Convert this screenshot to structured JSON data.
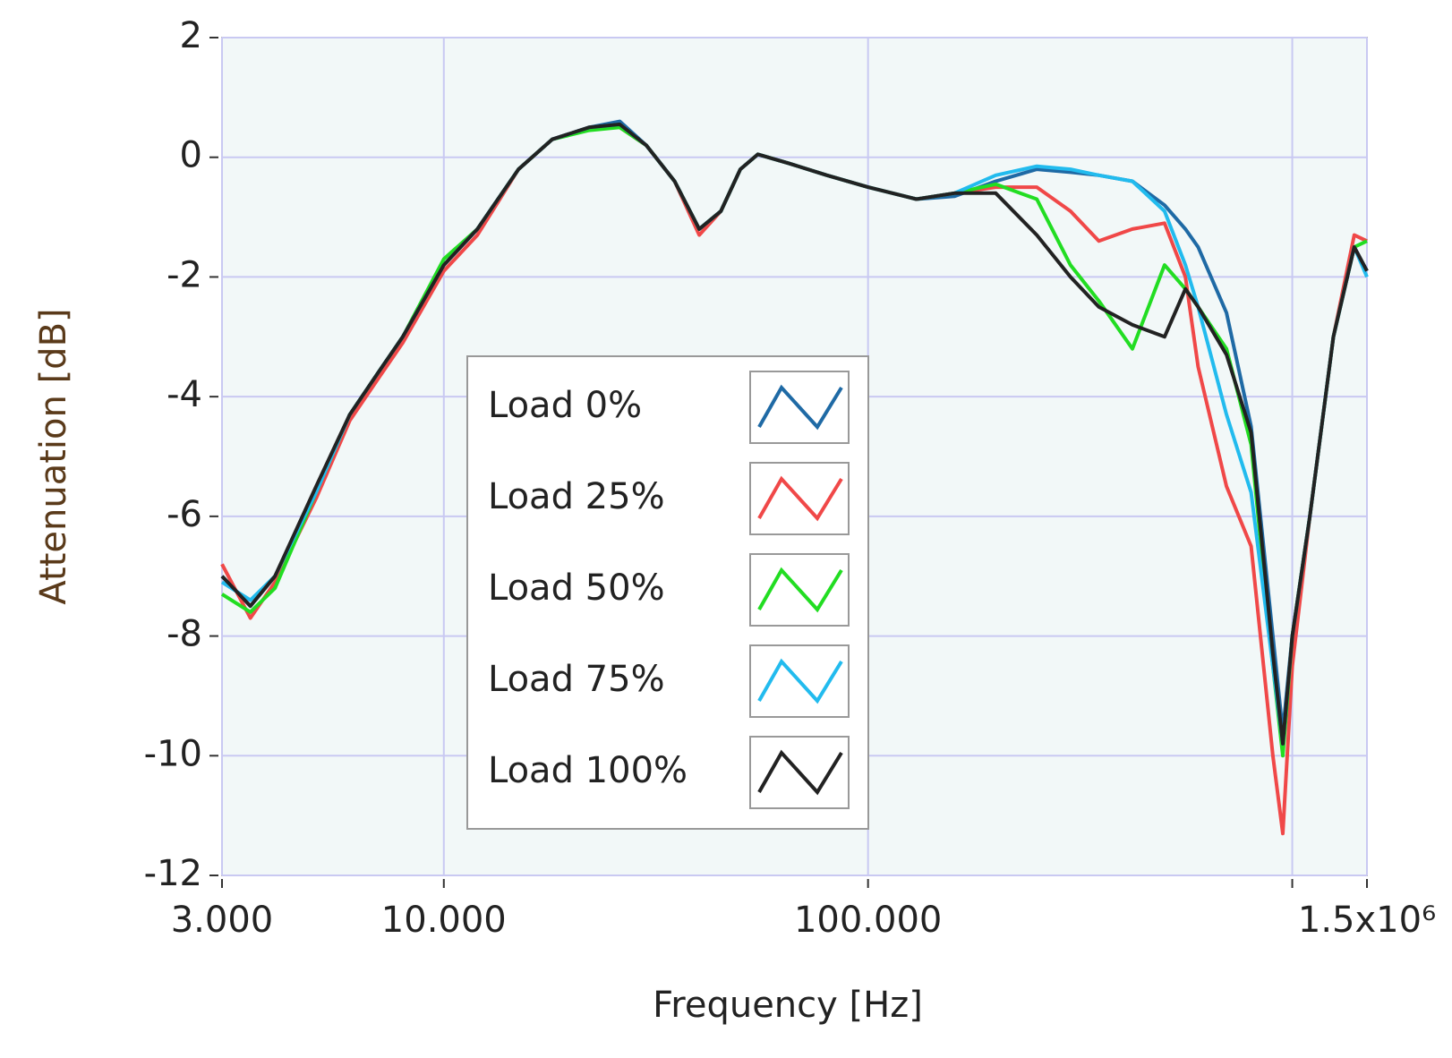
{
  "chart_data": {
    "type": "line",
    "x_label": "Frequency [Hz]",
    "y_label": "Attenuation [dB]",
    "log_x": true,
    "grid": true,
    "xlim": [
      3000,
      1500000
    ],
    "xticks": [
      {
        "value": 3000,
        "label": "3.000"
      },
      {
        "value": 10000,
        "label": "10.000"
      },
      {
        "value": 100000,
        "label": "100.000"
      },
      {
        "value": 1000000,
        "label": null
      },
      {
        "value": 1500000,
        "label": "1.5x10⁶"
      }
    ],
    "ylim": [
      -12,
      2
    ],
    "yticks": [
      -12,
      -10,
      -8,
      -6,
      -4,
      -2,
      0,
      2
    ],
    "x": [
      3000,
      3500,
      4000,
      5000,
      6000,
      7000,
      8000,
      10000,
      12000,
      15000,
      18000,
      22000,
      26000,
      30000,
      35000,
      40000,
      45000,
      50000,
      55000,
      65000,
      80000,
      100000,
      130000,
      160000,
      200000,
      250000,
      300000,
      350000,
      420000,
      500000,
      560000,
      600000,
      700000,
      800000,
      900000,
      950000,
      1000000,
      1100000,
      1250000,
      1400000,
      1500000
    ],
    "series": [
      {
        "name": "Load 0%",
        "color": "#1f6aa5",
        "values": [
          -7.0,
          -7.5,
          -7.0,
          -5.6,
          -4.3,
          -3.6,
          -3.0,
          -1.8,
          -1.2,
          -0.2,
          0.3,
          0.5,
          0.6,
          0.2,
          -0.4,
          -1.2,
          -0.9,
          -0.2,
          0.05,
          -0.1,
          -0.3,
          -0.5,
          -0.7,
          -0.65,
          -0.4,
          -0.2,
          -0.25,
          -0.3,
          -0.4,
          -0.8,
          -1.2,
          -1.5,
          -2.6,
          -4.5,
          -8.0,
          -9.6,
          -8.0,
          -6.0,
          -3.0,
          -1.5,
          -1.9
        ]
      },
      {
        "name": "Load 25%",
        "color": "#f04848",
        "values": [
          -6.8,
          -7.7,
          -7.1,
          -5.7,
          -4.4,
          -3.7,
          -3.1,
          -1.9,
          -1.3,
          -0.2,
          0.3,
          0.5,
          0.5,
          0.2,
          -0.4,
          -1.3,
          -0.9,
          -0.2,
          0.05,
          -0.1,
          -0.3,
          -0.5,
          -0.7,
          -0.6,
          -0.5,
          -0.5,
          -0.9,
          -1.4,
          -1.2,
          -1.1,
          -2.0,
          -3.5,
          -5.5,
          -6.5,
          -10.0,
          -11.3,
          -8.5,
          -6.0,
          -3.0,
          -1.3,
          -1.4
        ]
      },
      {
        "name": "Load 50%",
        "color": "#22dd22",
        "values": [
          -7.3,
          -7.6,
          -7.2,
          -5.6,
          -4.3,
          -3.6,
          -3.0,
          -1.7,
          -1.2,
          -0.2,
          0.3,
          0.45,
          0.5,
          0.2,
          -0.4,
          -1.2,
          -0.9,
          -0.2,
          0.05,
          -0.1,
          -0.3,
          -0.5,
          -0.7,
          -0.6,
          -0.45,
          -0.7,
          -1.8,
          -2.4,
          -3.2,
          -1.8,
          -2.2,
          -2.5,
          -3.2,
          -4.8,
          -8.5,
          -10.0,
          -8.0,
          -6.0,
          -3.0,
          -1.5,
          -1.4
        ]
      },
      {
        "name": "Load 75%",
        "color": "#22bbee",
        "values": [
          -7.1,
          -7.4,
          -7.0,
          -5.6,
          -4.3,
          -3.6,
          -3.0,
          -1.8,
          -1.2,
          -0.2,
          0.3,
          0.5,
          0.55,
          0.2,
          -0.4,
          -1.2,
          -0.9,
          -0.2,
          0.05,
          -0.1,
          -0.3,
          -0.5,
          -0.7,
          -0.6,
          -0.3,
          -0.15,
          -0.2,
          -0.3,
          -0.4,
          -0.9,
          -1.8,
          -2.5,
          -4.3,
          -5.6,
          -8.5,
          -9.8,
          -8.0,
          -6.0,
          -3.0,
          -1.5,
          -2.0
        ]
      },
      {
        "name": "Load 100%",
        "color": "#222222",
        "values": [
          -7.0,
          -7.5,
          -7.0,
          -5.5,
          -4.3,
          -3.6,
          -3.0,
          -1.8,
          -1.2,
          -0.2,
          0.3,
          0.5,
          0.55,
          0.2,
          -0.4,
          -1.2,
          -0.9,
          -0.2,
          0.05,
          -0.1,
          -0.3,
          -0.5,
          -0.7,
          -0.6,
          -0.6,
          -1.3,
          -2.0,
          -2.5,
          -2.8,
          -3.0,
          -2.2,
          -2.5,
          -3.3,
          -4.6,
          -8.3,
          -9.8,
          -8.0,
          -6.0,
          -3.0,
          -1.5,
          -1.9
        ]
      }
    ]
  }
}
